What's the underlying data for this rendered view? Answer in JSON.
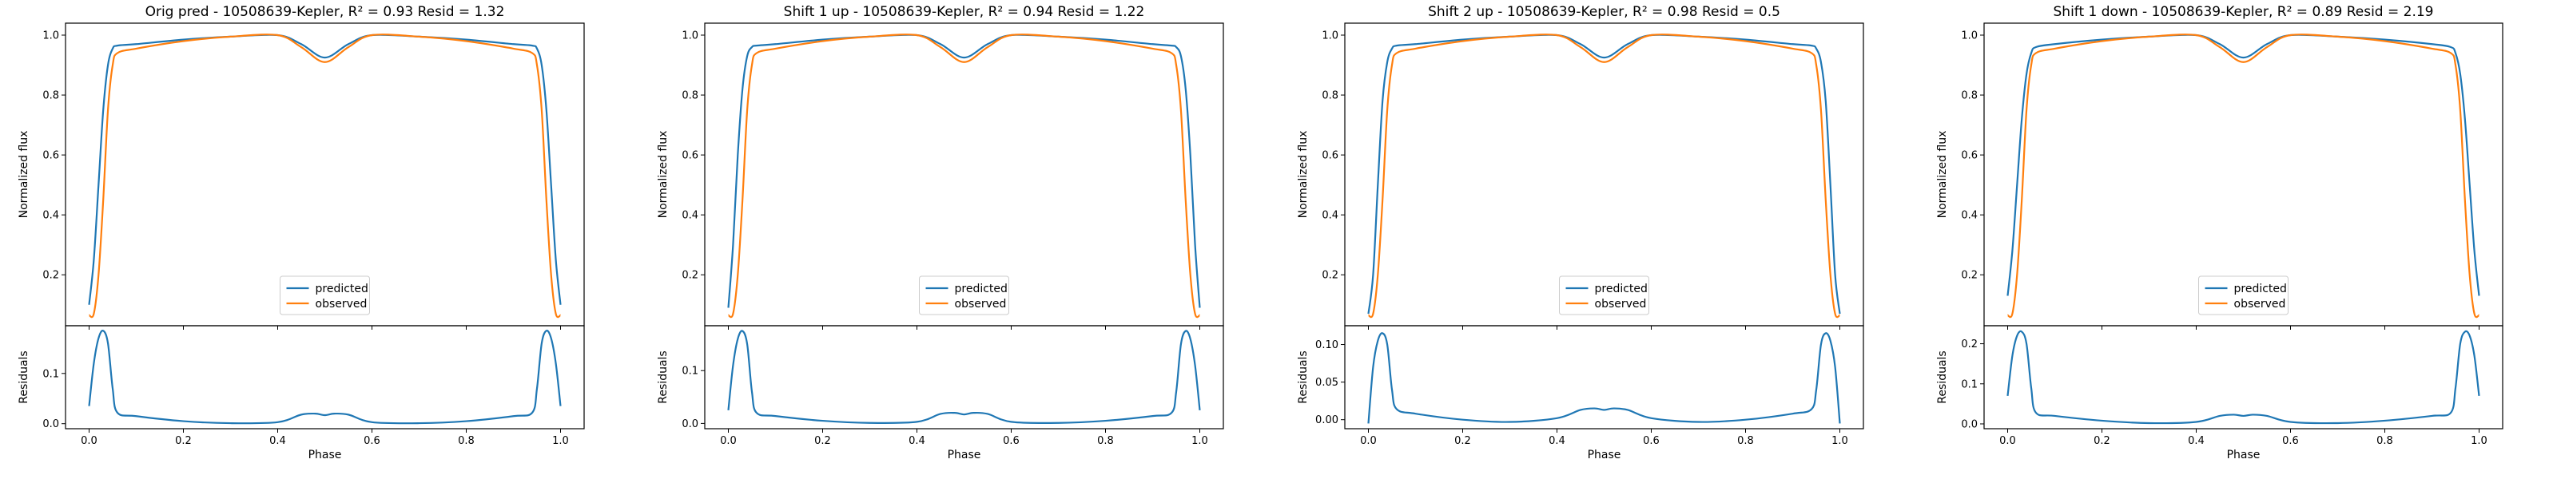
{
  "figure": {
    "colors": {
      "predicted": "#1f77b4",
      "observed": "#ff7f0e",
      "axes": "#000000",
      "legend_border": "#cccccc"
    }
  },
  "chart_data": [
    {
      "type": "line",
      "title": "Orig pred - 10508639-Kepler, R² = 0.93 Resid = 1.32",
      "xlabel": "Phase",
      "ylabel": "Normalized flux",
      "residual_ylabel": "Residuals",
      "xlim": [
        -0.05,
        1.05
      ],
      "ylim": [
        0.03,
        1.04
      ],
      "yticks": [
        0.2,
        0.4,
        0.6,
        0.8,
        1.0
      ],
      "residual_ylim": [
        -0.01,
        0.195
      ],
      "residual_yticks": [
        0.0,
        0.1
      ],
      "xticks": [
        0.0,
        0.2,
        0.4,
        0.6,
        0.8,
        1.0
      ],
      "legend": {
        "position": "lower-center",
        "entries": [
          "predicted",
          "observed"
        ]
      },
      "shape": {
        "pred_base": 0.1,
        "pred_plateau": 0.965,
        "obs_base": 0.065,
        "obs_plateau": 0.945,
        "pred_dip_depth": 0.075,
        "obs_dip_depth": 0.09
      },
      "series": [
        {
          "name": "predicted",
          "x": [
            0.0,
            0.01,
            0.02,
            0.03,
            0.04,
            0.05,
            0.06,
            0.1,
            0.2,
            0.3,
            0.4,
            0.45,
            0.5,
            0.55,
            0.6,
            0.7,
            0.8,
            0.9,
            0.94,
            0.95,
            0.96,
            0.97,
            0.98,
            0.99,
            1.0
          ],
          "y": [
            0.1,
            0.25,
            0.5,
            0.75,
            0.9,
            0.955,
            0.965,
            0.97,
            0.985,
            0.995,
            1.0,
            0.97,
            0.925,
            0.97,
            1.0,
            0.995,
            0.985,
            0.97,
            0.965,
            0.955,
            0.9,
            0.75,
            0.5,
            0.25,
            0.1
          ]
        },
        {
          "name": "observed",
          "x": [
            0.0,
            0.01,
            0.02,
            0.03,
            0.04,
            0.05,
            0.06,
            0.1,
            0.2,
            0.3,
            0.4,
            0.45,
            0.5,
            0.55,
            0.6,
            0.7,
            0.8,
            0.9,
            0.94,
            0.95,
            0.96,
            0.97,
            0.98,
            0.99,
            1.0
          ],
          "y": [
            0.065,
            0.07,
            0.2,
            0.45,
            0.75,
            0.9,
            0.94,
            0.955,
            0.98,
            0.995,
            1.0,
            0.96,
            0.91,
            0.96,
            1.0,
            0.995,
            0.98,
            0.955,
            0.94,
            0.9,
            0.75,
            0.45,
            0.2,
            0.07,
            0.065
          ]
        },
        {
          "name": "residuals",
          "x": [
            0.0,
            0.01,
            0.02,
            0.03,
            0.04,
            0.05,
            0.06,
            0.1,
            0.2,
            0.3,
            0.4,
            0.45,
            0.48,
            0.5,
            0.52,
            0.55,
            0.6,
            0.7,
            0.8,
            0.9,
            0.94,
            0.95,
            0.96,
            0.97,
            0.98,
            0.99,
            1.0
          ],
          "y": [
            0.035,
            0.12,
            0.17,
            0.185,
            0.16,
            0.07,
            0.022,
            0.015,
            0.005,
            0.001,
            0.003,
            0.018,
            0.02,
            0.017,
            0.02,
            0.018,
            0.003,
            0.001,
            0.005,
            0.015,
            0.022,
            0.07,
            0.16,
            0.185,
            0.17,
            0.12,
            0.035
          ]
        }
      ]
    },
    {
      "type": "line",
      "title": "Shift 1 up - 10508639-Kepler, R² = 0.94 Resid = 1.22",
      "xlabel": "Phase",
      "ylabel": "Normalized flux",
      "residual_ylabel": "Residuals",
      "xlim": [
        -0.05,
        1.05
      ],
      "ylim": [
        0.03,
        1.04
      ],
      "yticks": [
        0.2,
        0.4,
        0.6,
        0.8,
        1.0
      ],
      "residual_ylim": [
        -0.01,
        0.185
      ],
      "residual_yticks": [
        0.0,
        0.1
      ],
      "xticks": [
        0.0,
        0.2,
        0.4,
        0.6,
        0.8,
        1.0
      ],
      "legend": {
        "position": "lower-center",
        "entries": [
          "predicted",
          "observed"
        ]
      },
      "series": [
        {
          "name": "predicted",
          "x": [
            0.0,
            0.01,
            0.02,
            0.03,
            0.04,
            0.05,
            0.06,
            0.1,
            0.2,
            0.3,
            0.4,
            0.45,
            0.5,
            0.55,
            0.6,
            0.7,
            0.8,
            0.9,
            0.94,
            0.95,
            0.96,
            0.97,
            0.98,
            0.99,
            1.0
          ],
          "y": [
            0.09,
            0.3,
            0.6,
            0.82,
            0.93,
            0.96,
            0.965,
            0.97,
            0.985,
            0.995,
            1.0,
            0.97,
            0.925,
            0.97,
            1.0,
            0.995,
            0.985,
            0.97,
            0.965,
            0.96,
            0.93,
            0.82,
            0.6,
            0.3,
            0.09
          ]
        },
        {
          "name": "observed",
          "x": [
            0.0,
            0.01,
            0.02,
            0.03,
            0.04,
            0.05,
            0.06,
            0.1,
            0.2,
            0.3,
            0.4,
            0.45,
            0.5,
            0.55,
            0.6,
            0.7,
            0.8,
            0.9,
            0.94,
            0.95,
            0.96,
            0.97,
            0.98,
            0.99,
            1.0
          ],
          "y": [
            0.065,
            0.07,
            0.2,
            0.45,
            0.75,
            0.9,
            0.94,
            0.955,
            0.98,
            0.995,
            1.0,
            0.96,
            0.91,
            0.96,
            1.0,
            0.995,
            0.98,
            0.955,
            0.94,
            0.9,
            0.75,
            0.45,
            0.2,
            0.07,
            0.065
          ]
        },
        {
          "name": "residuals",
          "x": [
            0.0,
            0.01,
            0.02,
            0.03,
            0.04,
            0.05,
            0.06,
            0.1,
            0.2,
            0.3,
            0.4,
            0.45,
            0.48,
            0.5,
            0.52,
            0.55,
            0.6,
            0.7,
            0.8,
            0.9,
            0.94,
            0.95,
            0.96,
            0.97,
            0.98,
            0.99,
            1.0
          ],
          "y": [
            0.025,
            0.11,
            0.16,
            0.175,
            0.15,
            0.06,
            0.02,
            0.014,
            0.005,
            0.001,
            0.003,
            0.018,
            0.02,
            0.017,
            0.02,
            0.018,
            0.003,
            0.001,
            0.005,
            0.014,
            0.02,
            0.06,
            0.15,
            0.175,
            0.16,
            0.11,
            0.025
          ]
        }
      ]
    },
    {
      "type": "line",
      "title": "Shift 2 up - 10508639-Kepler, R² = 0.98 Resid = 0.5",
      "xlabel": "Phase",
      "ylabel": "Normalized flux",
      "residual_ylabel": "Residuals",
      "xlim": [
        -0.05,
        1.05
      ],
      "ylim": [
        0.03,
        1.04
      ],
      "yticks": [
        0.2,
        0.4,
        0.6,
        0.8,
        1.0
      ],
      "residual_ylim": [
        -0.012,
        0.125
      ],
      "residual_yticks": [
        0.0,
        0.05,
        0.1
      ],
      "residual_tick_labels": [
        "0.00",
        "0.05",
        "0.10"
      ],
      "xticks": [
        0.0,
        0.2,
        0.4,
        0.6,
        0.8,
        1.0
      ],
      "legend": {
        "position": "lower-center",
        "entries": [
          "predicted",
          "observed"
        ]
      },
      "series": [
        {
          "name": "predicted",
          "x": [
            0.0,
            0.01,
            0.02,
            0.03,
            0.04,
            0.05,
            0.06,
            0.1,
            0.2,
            0.3,
            0.4,
            0.45,
            0.5,
            0.55,
            0.6,
            0.7,
            0.8,
            0.9,
            0.94,
            0.95,
            0.96,
            0.97,
            0.98,
            0.99,
            1.0
          ],
          "y": [
            0.07,
            0.2,
            0.5,
            0.78,
            0.91,
            0.955,
            0.965,
            0.97,
            0.985,
            0.995,
            1.0,
            0.97,
            0.925,
            0.97,
            1.0,
            0.995,
            0.985,
            0.97,
            0.965,
            0.955,
            0.91,
            0.78,
            0.5,
            0.2,
            0.07
          ]
        },
        {
          "name": "observed",
          "x": [
            0.0,
            0.01,
            0.02,
            0.03,
            0.04,
            0.05,
            0.06,
            0.1,
            0.2,
            0.3,
            0.4,
            0.45,
            0.5,
            0.55,
            0.6,
            0.7,
            0.8,
            0.9,
            0.94,
            0.95,
            0.96,
            0.97,
            0.98,
            0.99,
            1.0
          ],
          "y": [
            0.065,
            0.07,
            0.2,
            0.45,
            0.75,
            0.9,
            0.94,
            0.955,
            0.98,
            0.995,
            1.0,
            0.96,
            0.91,
            0.96,
            1.0,
            0.995,
            0.98,
            0.955,
            0.94,
            0.9,
            0.75,
            0.45,
            0.2,
            0.07,
            0.065
          ]
        },
        {
          "name": "residuals",
          "x": [
            0.0,
            0.01,
            0.02,
            0.03,
            0.04,
            0.05,
            0.06,
            0.1,
            0.2,
            0.3,
            0.4,
            0.45,
            0.48,
            0.5,
            0.52,
            0.55,
            0.6,
            0.7,
            0.8,
            0.9,
            0.94,
            0.95,
            0.96,
            0.97,
            0.98,
            0.99,
            1.0
          ],
          "y": [
            -0.005,
            0.07,
            0.105,
            0.115,
            0.1,
            0.04,
            0.014,
            0.008,
            0.0,
            -0.003,
            0.002,
            0.013,
            0.015,
            0.013,
            0.015,
            0.013,
            0.002,
            -0.003,
            0.0,
            0.008,
            0.014,
            0.04,
            0.1,
            0.115,
            0.105,
            0.07,
            -0.005
          ]
        }
      ]
    },
    {
      "type": "line",
      "title": "Shift 1 down - 10508639-Kepler, R² = 0.89 Resid = 2.19",
      "xlabel": "Phase",
      "ylabel": "Normalized flux",
      "residual_ylabel": "Residuals",
      "xlim": [
        -0.05,
        1.05
      ],
      "ylim": [
        0.03,
        1.04
      ],
      "yticks": [
        0.2,
        0.4,
        0.6,
        0.8,
        1.0
      ],
      "residual_ylim": [
        -0.012,
        0.245
      ],
      "residual_yticks": [
        0.0,
        0.1,
        0.2
      ],
      "xticks": [
        0.0,
        0.2,
        0.4,
        0.6,
        0.8,
        1.0
      ],
      "legend": {
        "position": "lower-center",
        "entries": [
          "predicted",
          "observed"
        ]
      },
      "series": [
        {
          "name": "predicted",
          "x": [
            0.0,
            0.01,
            0.02,
            0.03,
            0.04,
            0.05,
            0.06,
            0.1,
            0.2,
            0.3,
            0.4,
            0.45,
            0.5,
            0.55,
            0.6,
            0.7,
            0.8,
            0.9,
            0.94,
            0.95,
            0.96,
            0.97,
            0.98,
            0.99,
            1.0
          ],
          "y": [
            0.13,
            0.28,
            0.5,
            0.72,
            0.87,
            0.94,
            0.96,
            0.97,
            0.985,
            0.995,
            1.0,
            0.97,
            0.925,
            0.97,
            1.0,
            0.995,
            0.985,
            0.97,
            0.96,
            0.94,
            0.87,
            0.72,
            0.5,
            0.28,
            0.13
          ]
        },
        {
          "name": "observed",
          "x": [
            0.0,
            0.01,
            0.02,
            0.03,
            0.04,
            0.05,
            0.06,
            0.1,
            0.2,
            0.3,
            0.4,
            0.45,
            0.5,
            0.55,
            0.6,
            0.7,
            0.8,
            0.9,
            0.94,
            0.95,
            0.96,
            0.97,
            0.98,
            0.99,
            1.0
          ],
          "y": [
            0.065,
            0.07,
            0.2,
            0.45,
            0.75,
            0.9,
            0.94,
            0.955,
            0.98,
            0.995,
            1.0,
            0.96,
            0.91,
            0.96,
            1.0,
            0.995,
            0.98,
            0.955,
            0.94,
            0.9,
            0.75,
            0.45,
            0.2,
            0.07,
            0.065
          ]
        },
        {
          "name": "residuals",
          "x": [
            0.0,
            0.01,
            0.02,
            0.03,
            0.04,
            0.05,
            0.06,
            0.1,
            0.2,
            0.3,
            0.4,
            0.45,
            0.48,
            0.5,
            0.52,
            0.55,
            0.6,
            0.7,
            0.8,
            0.9,
            0.94,
            0.95,
            0.96,
            0.97,
            0.98,
            0.99,
            1.0
          ],
          "y": [
            0.07,
            0.17,
            0.22,
            0.23,
            0.2,
            0.09,
            0.028,
            0.02,
            0.008,
            0.002,
            0.005,
            0.02,
            0.023,
            0.02,
            0.023,
            0.02,
            0.005,
            0.002,
            0.008,
            0.02,
            0.028,
            0.09,
            0.2,
            0.23,
            0.22,
            0.17,
            0.07
          ]
        }
      ]
    }
  ]
}
